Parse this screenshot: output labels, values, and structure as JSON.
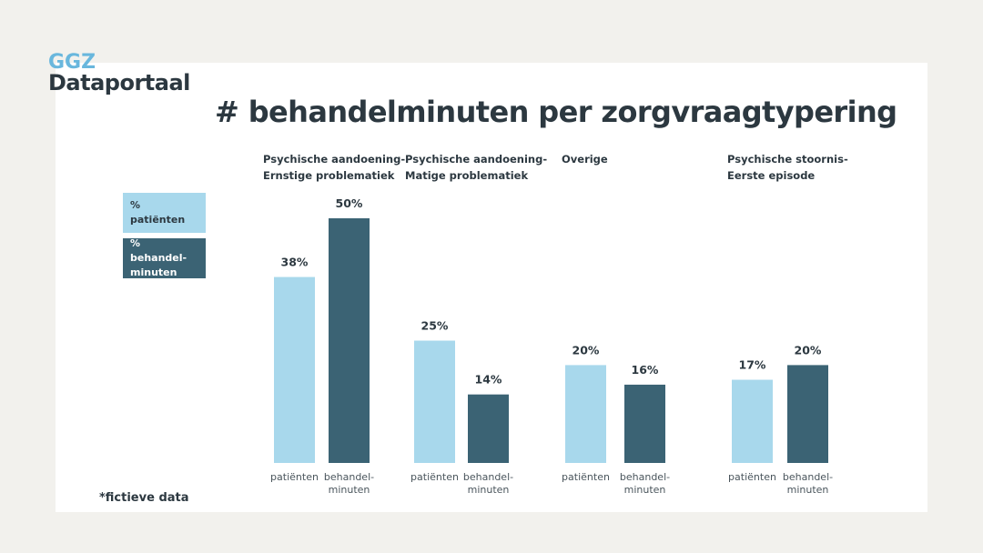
{
  "brand": {
    "line1": "GGZ",
    "line2": "Dataportaal"
  },
  "footnote": "*fictieve data",
  "legend": [
    {
      "label": "% patiënten",
      "color": "#a8d8ec"
    },
    {
      "label": "% behandel-minuten",
      "line1": "% behandel-",
      "line2": "minuten",
      "color": "#3b6374"
    }
  ],
  "chart_data": {
    "type": "bar",
    "title": "# behandelminuten per zorgvraagtypering",
    "xlabel": "",
    "ylabel": "",
    "ylim": [
      0,
      50
    ],
    "grid": false,
    "legend_position": "left",
    "categories": [
      "Psychische aandoening-Ernstige problematiek",
      "Psychische aandoening-Matige problematiek",
      "Overige",
      "Psychische stoornis-Eerste episode"
    ],
    "category_lines": [
      [
        "Psychische aandoening-",
        "Ernstige problematiek"
      ],
      [
        "Psychische aandoening-",
        "Matige problematiek"
      ],
      [
        "Overige"
      ],
      [
        "Psychische stoornis-",
        "Eerste episode"
      ]
    ],
    "bar_labels": {
      "patienten": [
        "patiënten"
      ],
      "behandelminuten": [
        "behandel-",
        "minuten"
      ]
    },
    "series": [
      {
        "name": "% patiënten",
        "key": "patienten",
        "color": "#a8d8ec",
        "values": [
          38,
          25,
          20,
          17
        ]
      },
      {
        "name": "% behandelminuten",
        "key": "behandelminuten",
        "color": "#3b6374",
        "values": [
          50,
          14,
          16,
          20
        ]
      }
    ],
    "value_suffix": "%"
  }
}
